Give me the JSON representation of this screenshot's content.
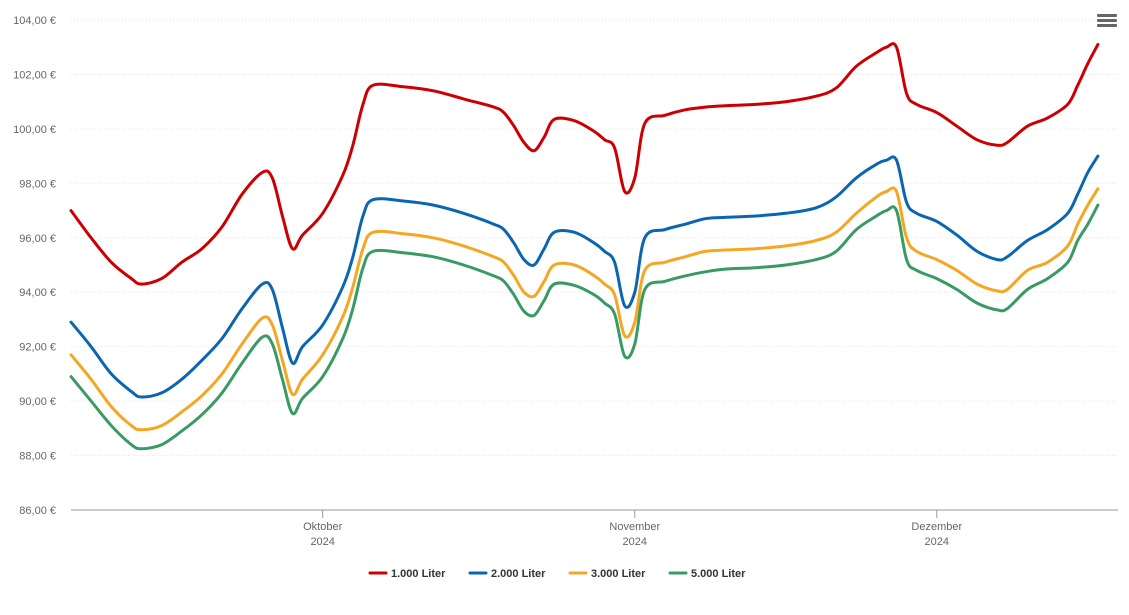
{
  "menu": {
    "icon": "hamburger-menu-icon"
  },
  "chart_data": {
    "type": "line",
    "x_axis": {
      "type": "date",
      "start": "2024-09-06",
      "end": "2024-12-19",
      "ticks": [
        {
          "date": "2024-10-01",
          "month": "Oktober",
          "year": "2024"
        },
        {
          "date": "2024-11-01",
          "month": "November",
          "year": "2024"
        },
        {
          "date": "2024-12-01",
          "month": "Dezember",
          "year": "2024"
        }
      ]
    },
    "y_axis": {
      "ylim": [
        86,
        104
      ],
      "ticks": [
        {
          "value": 86,
          "label": "86,00 €"
        },
        {
          "value": 88,
          "label": "88,00 €"
        },
        {
          "value": 90,
          "label": "90,00 €"
        },
        {
          "value": 92,
          "label": "92,00 €"
        },
        {
          "value": 94,
          "label": "94,00 €"
        },
        {
          "value": 96,
          "label": "96,00 €"
        },
        {
          "value": 98,
          "label": "98,00 €"
        },
        {
          "value": 100,
          "label": "100,00 €"
        },
        {
          "value": 102,
          "label": "102,00 €"
        },
        {
          "value": 104,
          "label": "104,00 €"
        }
      ]
    },
    "grid": true,
    "legend_position": "bottom-center",
    "series": [
      {
        "name": "1.000 Liter",
        "color": "#cc0000",
        "points": [
          [
            "2024-09-06",
            97.0
          ],
          [
            "2024-09-08",
            96.0
          ],
          [
            "2024-09-10",
            95.1
          ],
          [
            "2024-09-12",
            94.5
          ],
          [
            "2024-09-13",
            94.3
          ],
          [
            "2024-09-15",
            94.5
          ],
          [
            "2024-09-17",
            95.1
          ],
          [
            "2024-09-19",
            95.6
          ],
          [
            "2024-09-21",
            96.4
          ],
          [
            "2024-09-23",
            97.6
          ],
          [
            "2024-09-25",
            98.4
          ],
          [
            "2024-09-26",
            98.2
          ],
          [
            "2024-09-27",
            96.8
          ],
          [
            "2024-09-28",
            95.6
          ],
          [
            "2024-09-29",
            96.1
          ],
          [
            "2024-10-01",
            96.9
          ],
          [
            "2024-10-03",
            98.3
          ],
          [
            "2024-10-04",
            99.4
          ],
          [
            "2024-10-05",
            100.9
          ],
          [
            "2024-10-06",
            101.6
          ],
          [
            "2024-10-09",
            101.55
          ],
          [
            "2024-10-12",
            101.4
          ],
          [
            "2024-10-15",
            101.1
          ],
          [
            "2024-10-18",
            100.8
          ],
          [
            "2024-10-19",
            100.6
          ],
          [
            "2024-10-20",
            100.1
          ],
          [
            "2024-10-21",
            99.5
          ],
          [
            "2024-10-22",
            99.2
          ],
          [
            "2024-10-23",
            99.7
          ],
          [
            "2024-10-24",
            100.35
          ],
          [
            "2024-10-26",
            100.3
          ],
          [
            "2024-10-28",
            99.9
          ],
          [
            "2024-10-29",
            99.6
          ],
          [
            "2024-10-30",
            99.3
          ],
          [
            "2024-10-31",
            97.7
          ],
          [
            "2024-11-01",
            98.2
          ],
          [
            "2024-11-02",
            100.2
          ],
          [
            "2024-11-04",
            100.5
          ],
          [
            "2024-11-06",
            100.7
          ],
          [
            "2024-11-08",
            100.8
          ],
          [
            "2024-11-10",
            100.85
          ],
          [
            "2024-11-13",
            100.9
          ],
          [
            "2024-11-16",
            101.0
          ],
          [
            "2024-11-19",
            101.2
          ],
          [
            "2024-11-21",
            101.5
          ],
          [
            "2024-11-23",
            102.3
          ],
          [
            "2024-11-25",
            102.8
          ],
          [
            "2024-11-26",
            103.0
          ],
          [
            "2024-11-27",
            103.0
          ],
          [
            "2024-11-28",
            101.3
          ],
          [
            "2024-11-29",
            100.9
          ],
          [
            "2024-12-01",
            100.6
          ],
          [
            "2024-12-03",
            100.1
          ],
          [
            "2024-12-05",
            99.6
          ],
          [
            "2024-12-07",
            99.4
          ],
          [
            "2024-12-08",
            99.5
          ],
          [
            "2024-12-10",
            100.1
          ],
          [
            "2024-12-12",
            100.4
          ],
          [
            "2024-12-14",
            100.9
          ],
          [
            "2024-12-15",
            101.6
          ],
          [
            "2024-12-16",
            102.4
          ],
          [
            "2024-12-17",
            103.1
          ]
        ]
      },
      {
        "name": "2.000 Liter",
        "color": "#0a66b0",
        "points": [
          [
            "2024-09-06",
            92.9
          ],
          [
            "2024-09-08",
            92.0
          ],
          [
            "2024-09-10",
            91.0
          ],
          [
            "2024-09-12",
            90.35
          ],
          [
            "2024-09-13",
            90.15
          ],
          [
            "2024-09-15",
            90.3
          ],
          [
            "2024-09-17",
            90.8
          ],
          [
            "2024-09-19",
            91.5
          ],
          [
            "2024-09-21",
            92.3
          ],
          [
            "2024-09-23",
            93.4
          ],
          [
            "2024-09-25",
            94.3
          ],
          [
            "2024-09-26",
            94.1
          ],
          [
            "2024-09-27",
            92.7
          ],
          [
            "2024-09-28",
            91.4
          ],
          [
            "2024-09-29",
            92.0
          ],
          [
            "2024-10-01",
            92.8
          ],
          [
            "2024-10-03",
            94.2
          ],
          [
            "2024-10-04",
            95.3
          ],
          [
            "2024-10-05",
            96.8
          ],
          [
            "2024-10-06",
            97.4
          ],
          [
            "2024-10-09",
            97.35
          ],
          [
            "2024-10-12",
            97.2
          ],
          [
            "2024-10-15",
            96.9
          ],
          [
            "2024-10-18",
            96.5
          ],
          [
            "2024-10-19",
            96.3
          ],
          [
            "2024-10-20",
            95.8
          ],
          [
            "2024-10-21",
            95.2
          ],
          [
            "2024-10-22",
            95.0
          ],
          [
            "2024-10-23",
            95.6
          ],
          [
            "2024-10-24",
            96.2
          ],
          [
            "2024-10-26",
            96.2
          ],
          [
            "2024-10-28",
            95.8
          ],
          [
            "2024-10-29",
            95.5
          ],
          [
            "2024-10-30",
            95.1
          ],
          [
            "2024-10-31",
            93.5
          ],
          [
            "2024-11-01",
            94.0
          ],
          [
            "2024-11-02",
            96.0
          ],
          [
            "2024-11-04",
            96.3
          ],
          [
            "2024-11-06",
            96.5
          ],
          [
            "2024-11-08",
            96.7
          ],
          [
            "2024-11-10",
            96.75
          ],
          [
            "2024-11-13",
            96.8
          ],
          [
            "2024-11-16",
            96.9
          ],
          [
            "2024-11-19",
            97.1
          ],
          [
            "2024-11-21",
            97.5
          ],
          [
            "2024-11-23",
            98.2
          ],
          [
            "2024-11-25",
            98.7
          ],
          [
            "2024-11-26",
            98.85
          ],
          [
            "2024-11-27",
            98.85
          ],
          [
            "2024-11-28",
            97.3
          ],
          [
            "2024-11-29",
            96.9
          ],
          [
            "2024-12-01",
            96.6
          ],
          [
            "2024-12-03",
            96.1
          ],
          [
            "2024-12-05",
            95.5
          ],
          [
            "2024-12-07",
            95.2
          ],
          [
            "2024-12-08",
            95.3
          ],
          [
            "2024-12-10",
            95.9
          ],
          [
            "2024-12-12",
            96.3
          ],
          [
            "2024-12-14",
            96.9
          ],
          [
            "2024-12-15",
            97.6
          ],
          [
            "2024-12-16",
            98.4
          ],
          [
            "2024-12-17",
            99.0
          ]
        ]
      },
      {
        "name": "3.000 Liter",
        "color": "#f5a623",
        "points": [
          [
            "2024-09-06",
            91.7
          ],
          [
            "2024-09-08",
            90.8
          ],
          [
            "2024-09-10",
            89.8
          ],
          [
            "2024-09-12",
            89.1
          ],
          [
            "2024-09-13",
            88.95
          ],
          [
            "2024-09-15",
            89.1
          ],
          [
            "2024-09-17",
            89.6
          ],
          [
            "2024-09-19",
            90.2
          ],
          [
            "2024-09-21",
            91.0
          ],
          [
            "2024-09-23",
            92.1
          ],
          [
            "2024-09-25",
            93.05
          ],
          [
            "2024-09-26",
            92.8
          ],
          [
            "2024-09-27",
            91.5
          ],
          [
            "2024-09-28",
            90.25
          ],
          [
            "2024-09-29",
            90.8
          ],
          [
            "2024-10-01",
            91.7
          ],
          [
            "2024-10-03",
            93.1
          ],
          [
            "2024-10-04",
            94.2
          ],
          [
            "2024-10-05",
            95.6
          ],
          [
            "2024-10-06",
            96.2
          ],
          [
            "2024-10-09",
            96.15
          ],
          [
            "2024-10-12",
            96.0
          ],
          [
            "2024-10-15",
            95.7
          ],
          [
            "2024-10-18",
            95.3
          ],
          [
            "2024-10-19",
            95.1
          ],
          [
            "2024-10-20",
            94.6
          ],
          [
            "2024-10-21",
            94.0
          ],
          [
            "2024-10-22",
            93.85
          ],
          [
            "2024-10-23",
            94.4
          ],
          [
            "2024-10-24",
            95.0
          ],
          [
            "2024-10-26",
            95.0
          ],
          [
            "2024-10-28",
            94.6
          ],
          [
            "2024-10-29",
            94.3
          ],
          [
            "2024-10-30",
            93.9
          ],
          [
            "2024-10-31",
            92.4
          ],
          [
            "2024-11-01",
            92.9
          ],
          [
            "2024-11-02",
            94.8
          ],
          [
            "2024-11-04",
            95.1
          ],
          [
            "2024-11-06",
            95.3
          ],
          [
            "2024-11-08",
            95.5
          ],
          [
            "2024-11-10",
            95.55
          ],
          [
            "2024-11-13",
            95.6
          ],
          [
            "2024-11-16",
            95.7
          ],
          [
            "2024-11-19",
            95.9
          ],
          [
            "2024-11-21",
            96.2
          ],
          [
            "2024-11-23",
            96.9
          ],
          [
            "2024-11-25",
            97.5
          ],
          [
            "2024-11-26",
            97.7
          ],
          [
            "2024-11-27",
            97.7
          ],
          [
            "2024-11-28",
            96.0
          ],
          [
            "2024-11-29",
            95.5
          ],
          [
            "2024-12-01",
            95.2
          ],
          [
            "2024-12-03",
            94.8
          ],
          [
            "2024-12-05",
            94.3
          ],
          [
            "2024-12-07",
            94.05
          ],
          [
            "2024-12-08",
            94.1
          ],
          [
            "2024-12-10",
            94.8
          ],
          [
            "2024-12-12",
            95.1
          ],
          [
            "2024-12-14",
            95.7
          ],
          [
            "2024-12-15",
            96.5
          ],
          [
            "2024-12-16",
            97.2
          ],
          [
            "2024-12-17",
            97.8
          ]
        ]
      },
      {
        "name": "5.000 Liter",
        "color": "#3a9a63",
        "points": [
          [
            "2024-09-06",
            90.9
          ],
          [
            "2024-09-08",
            90.0
          ],
          [
            "2024-09-10",
            89.1
          ],
          [
            "2024-09-12",
            88.4
          ],
          [
            "2024-09-13",
            88.25
          ],
          [
            "2024-09-15",
            88.4
          ],
          [
            "2024-09-17",
            88.9
          ],
          [
            "2024-09-19",
            89.5
          ],
          [
            "2024-09-21",
            90.3
          ],
          [
            "2024-09-23",
            91.4
          ],
          [
            "2024-09-25",
            92.35
          ],
          [
            "2024-09-26",
            92.1
          ],
          [
            "2024-09-27",
            90.8
          ],
          [
            "2024-09-28",
            89.55
          ],
          [
            "2024-09-29",
            90.1
          ],
          [
            "2024-10-01",
            90.9
          ],
          [
            "2024-10-03",
            92.3
          ],
          [
            "2024-10-04",
            93.4
          ],
          [
            "2024-10-05",
            94.9
          ],
          [
            "2024-10-06",
            95.5
          ],
          [
            "2024-10-09",
            95.45
          ],
          [
            "2024-10-12",
            95.3
          ],
          [
            "2024-10-15",
            95.0
          ],
          [
            "2024-10-18",
            94.6
          ],
          [
            "2024-10-19",
            94.4
          ],
          [
            "2024-10-20",
            93.9
          ],
          [
            "2024-10-21",
            93.3
          ],
          [
            "2024-10-22",
            93.15
          ],
          [
            "2024-10-23",
            93.7
          ],
          [
            "2024-10-24",
            94.3
          ],
          [
            "2024-10-26",
            94.25
          ],
          [
            "2024-10-28",
            93.9
          ],
          [
            "2024-10-29",
            93.6
          ],
          [
            "2024-10-30",
            93.2
          ],
          [
            "2024-10-31",
            91.65
          ],
          [
            "2024-11-01",
            92.1
          ],
          [
            "2024-11-02",
            94.1
          ],
          [
            "2024-11-04",
            94.4
          ],
          [
            "2024-11-06",
            94.6
          ],
          [
            "2024-11-08",
            94.75
          ],
          [
            "2024-11-10",
            94.85
          ],
          [
            "2024-11-13",
            94.9
          ],
          [
            "2024-11-16",
            95.0
          ],
          [
            "2024-11-19",
            95.2
          ],
          [
            "2024-11-21",
            95.5
          ],
          [
            "2024-11-23",
            96.3
          ],
          [
            "2024-11-25",
            96.8
          ],
          [
            "2024-11-26",
            97.0
          ],
          [
            "2024-11-27",
            97.0
          ],
          [
            "2024-11-28",
            95.2
          ],
          [
            "2024-11-29",
            94.8
          ],
          [
            "2024-12-01",
            94.5
          ],
          [
            "2024-12-03",
            94.1
          ],
          [
            "2024-12-05",
            93.6
          ],
          [
            "2024-12-07",
            93.35
          ],
          [
            "2024-12-08",
            93.4
          ],
          [
            "2024-12-10",
            94.1
          ],
          [
            "2024-12-12",
            94.5
          ],
          [
            "2024-12-14",
            95.1
          ],
          [
            "2024-12-15",
            95.9
          ],
          [
            "2024-12-16",
            96.5
          ],
          [
            "2024-12-17",
            97.2
          ]
        ]
      }
    ]
  }
}
